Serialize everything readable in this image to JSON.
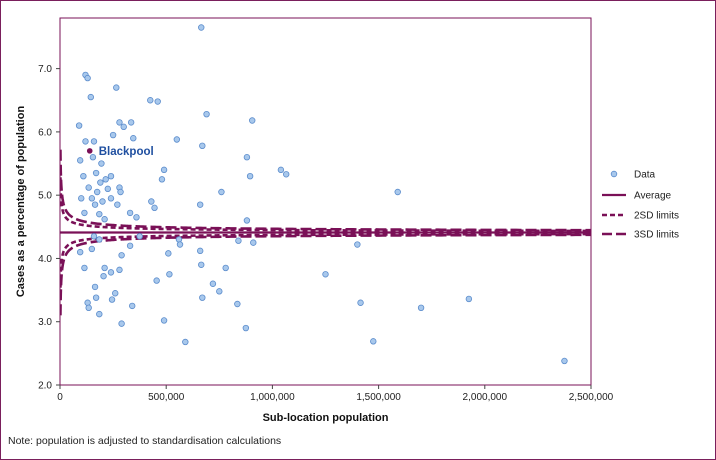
{
  "chart_data": {
    "type": "scatter",
    "title": "",
    "xlabel": "Sub-location population",
    "ylabel": "Cases as a percentage of population",
    "xlim": [
      0,
      2500000
    ],
    "ylim": [
      2.0,
      7.8
    ],
    "xticks": [
      0,
      500000,
      1000000,
      1500000,
      2000000,
      2500000
    ],
    "xtick_labels": [
      "0",
      "500,000",
      "1,000,000",
      "1,500,000",
      "2,000,000",
      "2,500,000"
    ],
    "yticks": [
      2.0,
      3.0,
      4.0,
      5.0,
      6.0,
      7.0
    ],
    "ytick_labels": [
      "2.0",
      "3.0",
      "4.0",
      "5.0",
      "6.0",
      "7.0"
    ],
    "average": 4.41,
    "sd_scale": 19.5,
    "legend": [
      "Data",
      "Average",
      "2SD limits",
      "3SD limits"
    ],
    "annotation": {
      "label": "Blackpool",
      "x": 140000,
      "y": 5.7
    },
    "colors": {
      "points": "#a8c8ec",
      "point_edge": "#5b8ccc",
      "lines": "#7a1057",
      "highlight": "#7a1057",
      "annotation": "#1f4fa0"
    },
    "series": [
      {
        "name": "Data",
        "points": [
          [
            665000,
            7.65
          ],
          [
            120000,
            6.9
          ],
          [
            130000,
            6.85
          ],
          [
            265000,
            6.7
          ],
          [
            145000,
            6.55
          ],
          [
            425000,
            6.5
          ],
          [
            460000,
            6.48
          ],
          [
            90000,
            6.1
          ],
          [
            280000,
            6.15
          ],
          [
            335000,
            6.15
          ],
          [
            300000,
            6.08
          ],
          [
            690000,
            6.28
          ],
          [
            905000,
            6.18
          ],
          [
            120000,
            5.85
          ],
          [
            160000,
            5.85
          ],
          [
            250000,
            5.95
          ],
          [
            345000,
            5.9
          ],
          [
            550000,
            5.88
          ],
          [
            670000,
            5.78
          ],
          [
            95000,
            5.55
          ],
          [
            155000,
            5.6
          ],
          [
            195000,
            5.5
          ],
          [
            880000,
            5.6
          ],
          [
            1040000,
            5.4
          ],
          [
            1065000,
            5.33
          ],
          [
            110000,
            5.3
          ],
          [
            170000,
            5.35
          ],
          [
            215000,
            5.25
          ],
          [
            240000,
            5.3
          ],
          [
            190000,
            5.2
          ],
          [
            490000,
            5.4
          ],
          [
            480000,
            5.25
          ],
          [
            895000,
            5.3
          ],
          [
            135000,
            5.12
          ],
          [
            175000,
            5.05
          ],
          [
            225000,
            5.1
          ],
          [
            280000,
            5.12
          ],
          [
            285000,
            5.05
          ],
          [
            760000,
            5.05
          ],
          [
            1590000,
            5.05
          ],
          [
            100000,
            4.95
          ],
          [
            150000,
            4.95
          ],
          [
            165000,
            4.85
          ],
          [
            200000,
            4.9
          ],
          [
            240000,
            4.95
          ],
          [
            270000,
            4.85
          ],
          [
            430000,
            4.9
          ],
          [
            445000,
            4.8
          ],
          [
            660000,
            4.85
          ],
          [
            115000,
            4.72
          ],
          [
            185000,
            4.7
          ],
          [
            210000,
            4.62
          ],
          [
            330000,
            4.72
          ],
          [
            360000,
            4.65
          ],
          [
            880000,
            4.6
          ],
          [
            160000,
            4.35
          ],
          [
            185000,
            4.3
          ],
          [
            375000,
            4.35
          ],
          [
            560000,
            4.3
          ],
          [
            565000,
            4.22
          ],
          [
            840000,
            4.28
          ],
          [
            910000,
            4.25
          ],
          [
            1400000,
            4.22
          ],
          [
            95000,
            4.1
          ],
          [
            150000,
            4.15
          ],
          [
            330000,
            4.2
          ],
          [
            510000,
            4.08
          ],
          [
            660000,
            4.12
          ],
          [
            290000,
            4.05
          ],
          [
            115000,
            3.85
          ],
          [
            210000,
            3.85
          ],
          [
            280000,
            3.82
          ],
          [
            240000,
            3.78
          ],
          [
            515000,
            3.75
          ],
          [
            665000,
            3.9
          ],
          [
            780000,
            3.85
          ],
          [
            1250000,
            3.75
          ],
          [
            205000,
            3.72
          ],
          [
            165000,
            3.55
          ],
          [
            260000,
            3.45
          ],
          [
            455000,
            3.65
          ],
          [
            750000,
            3.48
          ],
          [
            720000,
            3.6
          ],
          [
            170000,
            3.38
          ],
          [
            245000,
            3.35
          ],
          [
            130000,
            3.3
          ],
          [
            340000,
            3.25
          ],
          [
            670000,
            3.38
          ],
          [
            835000,
            3.28
          ],
          [
            1415000,
            3.3
          ],
          [
            1700000,
            3.22
          ],
          [
            1925000,
            3.36
          ],
          [
            135000,
            3.22
          ],
          [
            185000,
            3.12
          ],
          [
            490000,
            3.02
          ],
          [
            290000,
            2.97
          ],
          [
            875000,
            2.9
          ],
          [
            590000,
            2.68
          ],
          [
            1475000,
            2.69
          ],
          [
            2375000,
            2.38
          ]
        ]
      }
    ]
  },
  "note": "Note: population is adjusted to standardisation calculations"
}
